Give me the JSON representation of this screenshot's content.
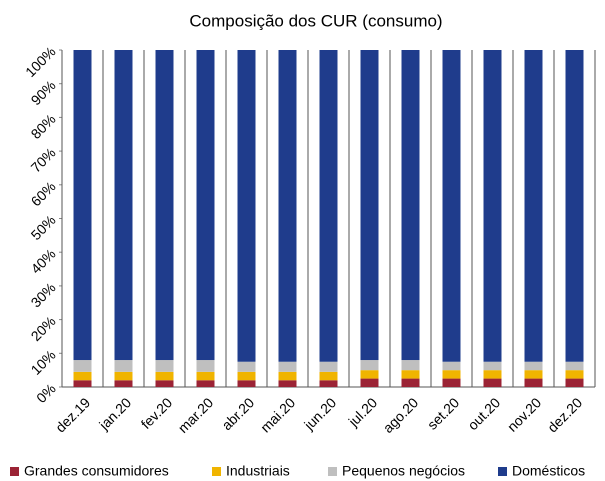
{
  "chart_data": {
    "type": "stacked_bar_100",
    "title": "Composição dos CUR (consumo)",
    "categories": [
      "dez.19",
      "jan.20",
      "fev.20",
      "mar.20",
      "abr.20",
      "mai.20",
      "jun.20",
      "jul.20",
      "ago.20",
      "set.20",
      "out.20",
      "nov.20",
      "dez.20"
    ],
    "series": [
      {
        "name": "Grandes consumidores",
        "color": "#9b2335",
        "values": [
          2,
          2,
          2,
          2,
          2,
          2,
          2,
          2.5,
          2.5,
          2.5,
          2.5,
          2.5,
          2.5
        ]
      },
      {
        "name": "Industriais",
        "color": "#f0b400",
        "values": [
          2.5,
          2.5,
          2.5,
          2.5,
          2.5,
          2.5,
          2.5,
          2.5,
          2.5,
          2.5,
          2.5,
          2.5,
          2.5
        ]
      },
      {
        "name": "Pequenos negócios",
        "color": "#bfbfbf",
        "values": [
          3.5,
          3.5,
          3.5,
          3.5,
          3,
          3,
          3,
          3,
          3,
          2.5,
          2.5,
          2.5,
          2.5
        ]
      },
      {
        "name": "Domésticos",
        "color": "#1f3c8c",
        "values": [
          92,
          92,
          92,
          92,
          92.5,
          92.5,
          92.5,
          92,
          92,
          92.5,
          92.5,
          92.5,
          92.5
        ]
      }
    ],
    "ylim": [
      0,
      100
    ],
    "yticks": [
      {
        "value": 0,
        "label": "0%"
      },
      {
        "value": 10,
        "label": "10%"
      },
      {
        "value": 20,
        "label": "20%"
      },
      {
        "value": 30,
        "label": "30%"
      },
      {
        "value": 40,
        "label": "40%"
      },
      {
        "value": 50,
        "label": "50%"
      },
      {
        "value": 60,
        "label": "60%"
      },
      {
        "value": 70,
        "label": "70%"
      },
      {
        "value": 80,
        "label": "80%"
      },
      {
        "value": 90,
        "label": "90%"
      },
      {
        "value": 100,
        "label": "100%"
      }
    ],
    "legend": "bottom"
  }
}
